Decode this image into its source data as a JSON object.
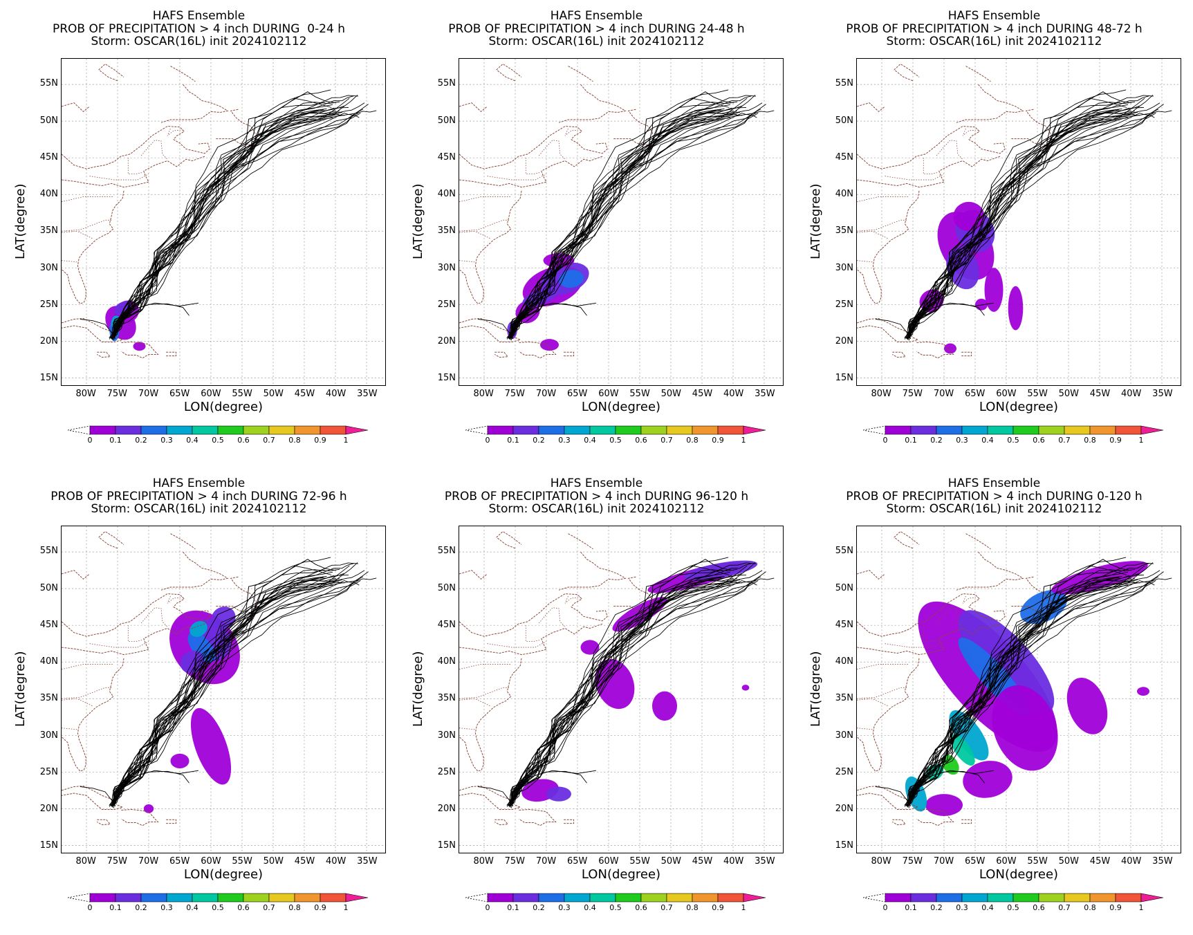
{
  "panels": [
    {
      "line1": "HAFS Ensemble",
      "line2": "PROB OF PRECIPITATION > 4 inch DURING  0-24 h",
      "line3": "Storm: OSCAR(16L) init 2024102112"
    },
    {
      "line1": "HAFS Ensemble",
      "line2": "PROB OF PRECIPITATION > 4 inch DURING 24-48 h",
      "line3": "Storm: OSCAR(16L) init 2024102112"
    },
    {
      "line1": "HAFS Ensemble",
      "line2": "PROB OF PRECIPITATION > 4 inch DURING 48-72 h",
      "line3": "Storm: OSCAR(16L) init 2024102112"
    },
    {
      "line1": "HAFS Ensemble",
      "line2": "PROB OF PRECIPITATION > 4 inch DURING 72-96 h",
      "line3": "Storm: OSCAR(16L) init 2024102112"
    },
    {
      "line1": "HAFS Ensemble",
      "line2": "PROB OF PRECIPITATION > 4 inch DURING 96-120 h",
      "line3": "Storm: OSCAR(16L) init 2024102112"
    },
    {
      "line1": "HAFS Ensemble",
      "line2": "PROB OF PRECIPITATION > 4 inch DURING 0-120 h",
      "line3": "Storm: OSCAR(16L) init 2024102112"
    }
  ],
  "axes": {
    "xlabel": "LON(degree)",
    "ylabel": "LAT(degree)",
    "lat_ticks": [
      "55N",
      "50N",
      "45N",
      "40N",
      "35N",
      "30N",
      "25N",
      "20N",
      "15N"
    ],
    "lon_ticks": [
      "80W",
      "75W",
      "70W",
      "65W",
      "60W",
      "55W",
      "50W",
      "45W",
      "40W",
      "35W"
    ]
  },
  "colorbar": {
    "labels": [
      "0",
      "0.1",
      "0.2",
      "0.3",
      "0.4",
      "0.5",
      "0.6",
      "0.7",
      "0.8",
      "0.9",
      "1"
    ],
    "colors": [
      "#a000d8",
      "#6a2de0",
      "#1e6ee8",
      "#00a7d0",
      "#00c8a0",
      "#1ecb1e",
      "#9fd21e",
      "#e6c81e",
      "#f0962d",
      "#f0553a",
      "#f01e96"
    ]
  },
  "colors": {
    "coast": "#8b4a3a",
    "track": "#000000",
    "grid": "#999999"
  }
}
